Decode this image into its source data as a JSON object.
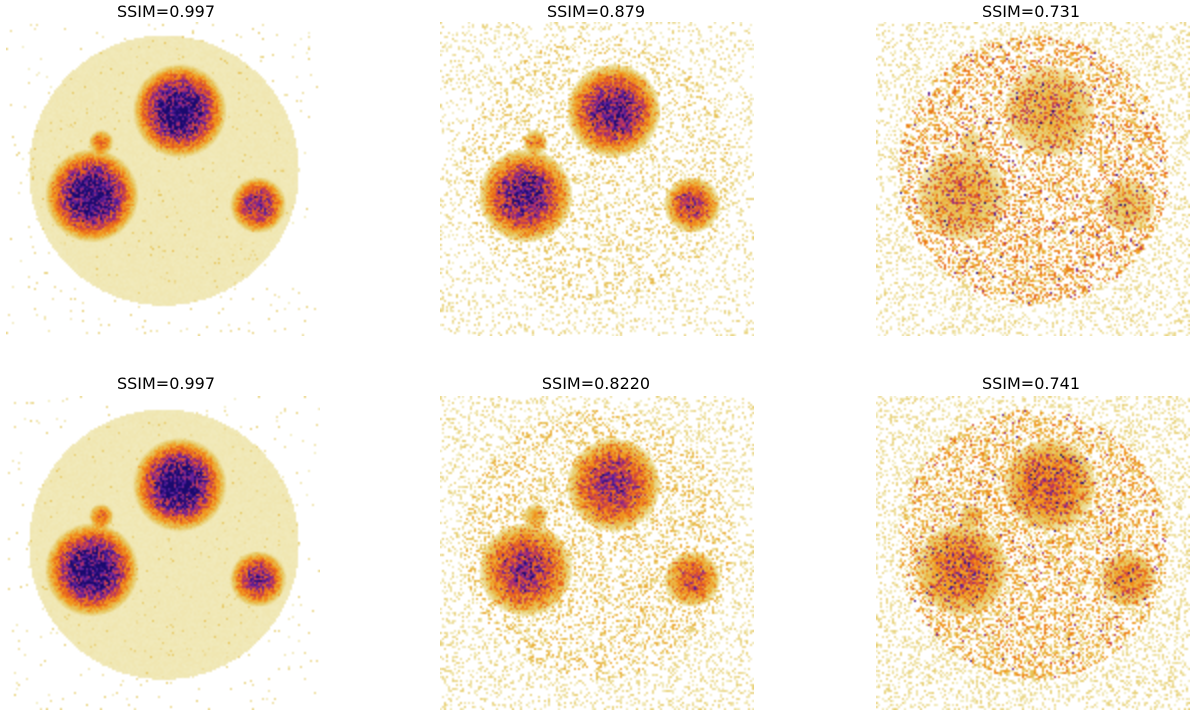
{
  "figure": {
    "panels": [
      {
        "title": "SSIM=0.997",
        "noise": 0.05,
        "blob_scale": 1.0,
        "degrade": 0.0
      },
      {
        "title": "SSIM=0.879",
        "noise": 0.55,
        "blob_scale": 0.85,
        "degrade": 0.25
      },
      {
        "title": "SSIM=0.731",
        "noise": 0.75,
        "blob_scale": 0.25,
        "degrade": 0.9
      },
      {
        "title": "SSIM=0.997",
        "noise": 0.05,
        "blob_scale": 1.0,
        "degrade": 0.0
      },
      {
        "title": "SSIM=0.8220",
        "noise": 0.7,
        "blob_scale": 0.7,
        "degrade": 0.4
      },
      {
        "title": "SSIM=0.741",
        "noise": 0.85,
        "blob_scale": 0.45,
        "degrade": 0.7
      }
    ],
    "colormap": [
      "#ffffff",
      "#f2ecc0",
      "#e6c860",
      "#f29a1e",
      "#e8601c",
      "#b3306a",
      "#5a1fa0",
      "#1a0a6e"
    ]
  }
}
